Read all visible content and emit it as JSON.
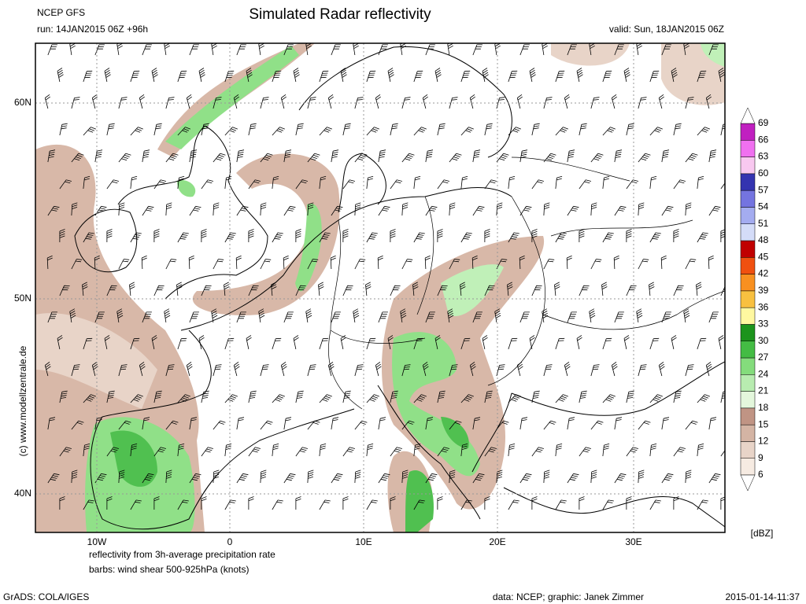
{
  "header": {
    "model": "NCEP GFS",
    "run": "run: 14JAN2015 06Z +96h",
    "title": "Simulated Radar reflectivity",
    "valid": "valid: Sun, 18JAN2015 06Z"
  },
  "map": {
    "lat_labels": [
      "60N",
      "50N",
      "40N"
    ],
    "lon_labels": [
      "10W",
      "0",
      "10E",
      "20E",
      "30E"
    ],
    "copyright": "(c) www.modellzentrale.de"
  },
  "colorbar": {
    "unit": "[dBZ]",
    "levels": [
      6,
      9,
      12,
      15,
      18,
      21,
      24,
      27,
      30,
      33,
      36,
      39,
      42,
      45,
      48,
      51,
      54,
      57,
      60,
      63,
      66,
      69
    ],
    "colors": [
      "#f6ebe2",
      "#e8d4c8",
      "#d4b4a4",
      "#c09484",
      "#e4f7dc",
      "#b8ecb0",
      "#84dc7c",
      "#44bc44",
      "#1c941c",
      "#fff8a0",
      "#f8c040",
      "#f89020",
      "#f05010",
      "#c00000",
      "#d4dcf8",
      "#a4acf0",
      "#7474e0",
      "#3434b0",
      "#f8c8f0",
      "#f070f0",
      "#c020c0"
    ]
  },
  "footer": {
    "description": [
      "reflectivity from 3h-average precipitation rate",
      "barbs: wind shear 500-925hPa (knots)"
    ],
    "software": "GrADS: COLA/IGES",
    "credit": "data: NCEP; graphic: Janek Zimmer",
    "timestamp": "2015-01-14-11:37"
  }
}
